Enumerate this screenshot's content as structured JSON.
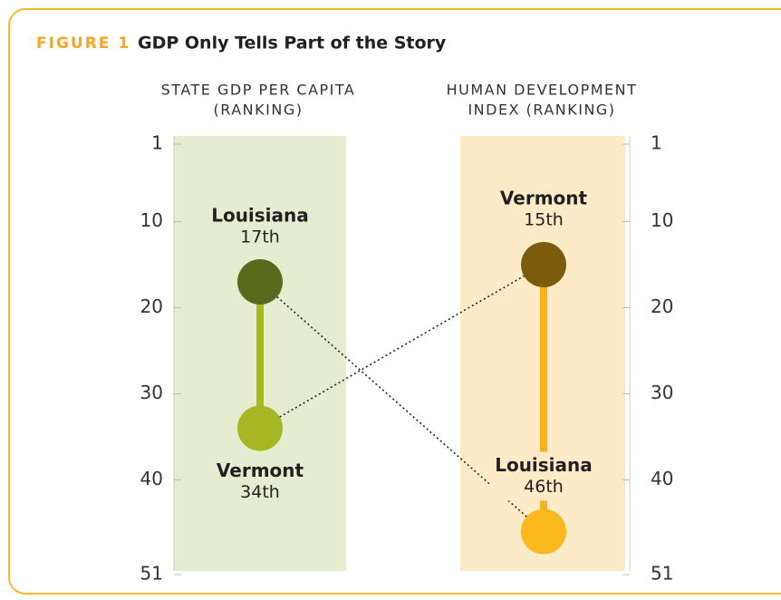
{
  "chart_data": {
    "type": "dumbbell-slope",
    "figure_label": "FIGURE 1",
    "title": "GDP Only Tells Part of the Story",
    "categories": [
      [
        "STATE GDP PER CAPITA",
        "(RANKING)"
      ],
      [
        "HUMAN DEVELOPMENT",
        "INDEX (RANKING)"
      ]
    ],
    "band_colors": [
      "#e6ecd0",
      "#fdebc7"
    ],
    "connector_colors": [
      "#a5b823",
      "#f6b41b"
    ],
    "series": [
      {
        "name": "Louisiana",
        "values": [
          17,
          46
        ],
        "value_labels": [
          "17th",
          "46th"
        ],
        "colors": [
          "#5a6a1c",
          "#fbb81c"
        ]
      },
      {
        "name": "Vermont",
        "values": [
          34,
          15
        ],
        "value_labels": [
          "34th",
          "15th"
        ],
        "colors": [
          "#a5b823",
          "#7a5c0c"
        ]
      }
    ],
    "ylim": [
      1,
      51
    ],
    "y_inverted": true,
    "yticks": [
      1,
      10,
      20,
      30,
      40,
      51
    ]
  }
}
